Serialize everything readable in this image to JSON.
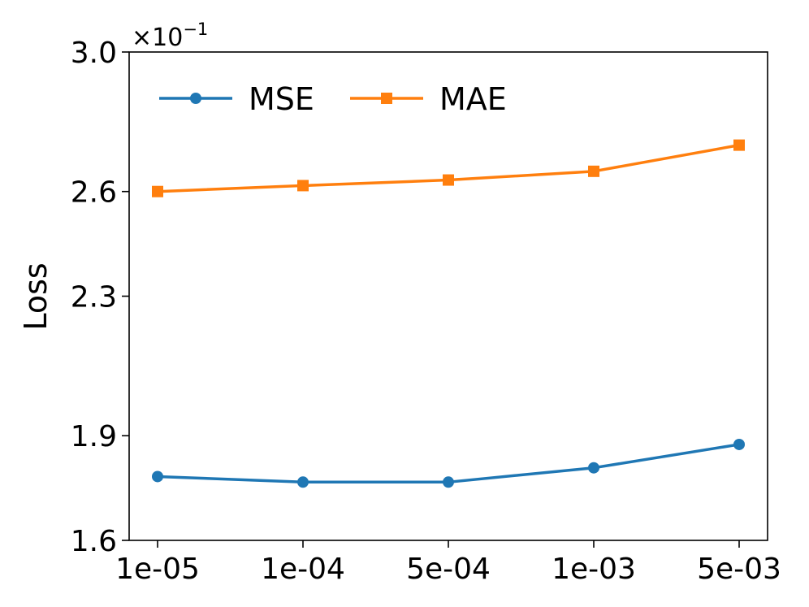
{
  "chart_data": {
    "type": "line",
    "categories": [
      "1e-05",
      "1e-04",
      "5e-04",
      "1e-03",
      "5e-03"
    ],
    "ylabel": "Loss",
    "xlabel": "",
    "title": "",
    "y_offset_base": "×10",
    "y_offset_exponent": "−1",
    "ylim": [
      1.6,
      3.0
    ],
    "yticks": [
      1.6,
      1.9,
      2.3,
      2.6,
      3.0
    ],
    "ytick_labels": [
      "1.6",
      "1.9",
      "2.3",
      "2.6",
      "3.0"
    ],
    "grid": false,
    "legend_position": "top-left",
    "series": [
      {
        "name": "MSE",
        "values": [
          1.783,
          1.767,
          1.767,
          1.808,
          1.875
        ],
        "color": "#1f77b4",
        "marker": "circle"
      },
      {
        "name": "MAE",
        "values": [
          2.6,
          2.617,
          2.633,
          2.658,
          2.733
        ],
        "color": "#ff7f0e",
        "marker": "square"
      }
    ]
  }
}
